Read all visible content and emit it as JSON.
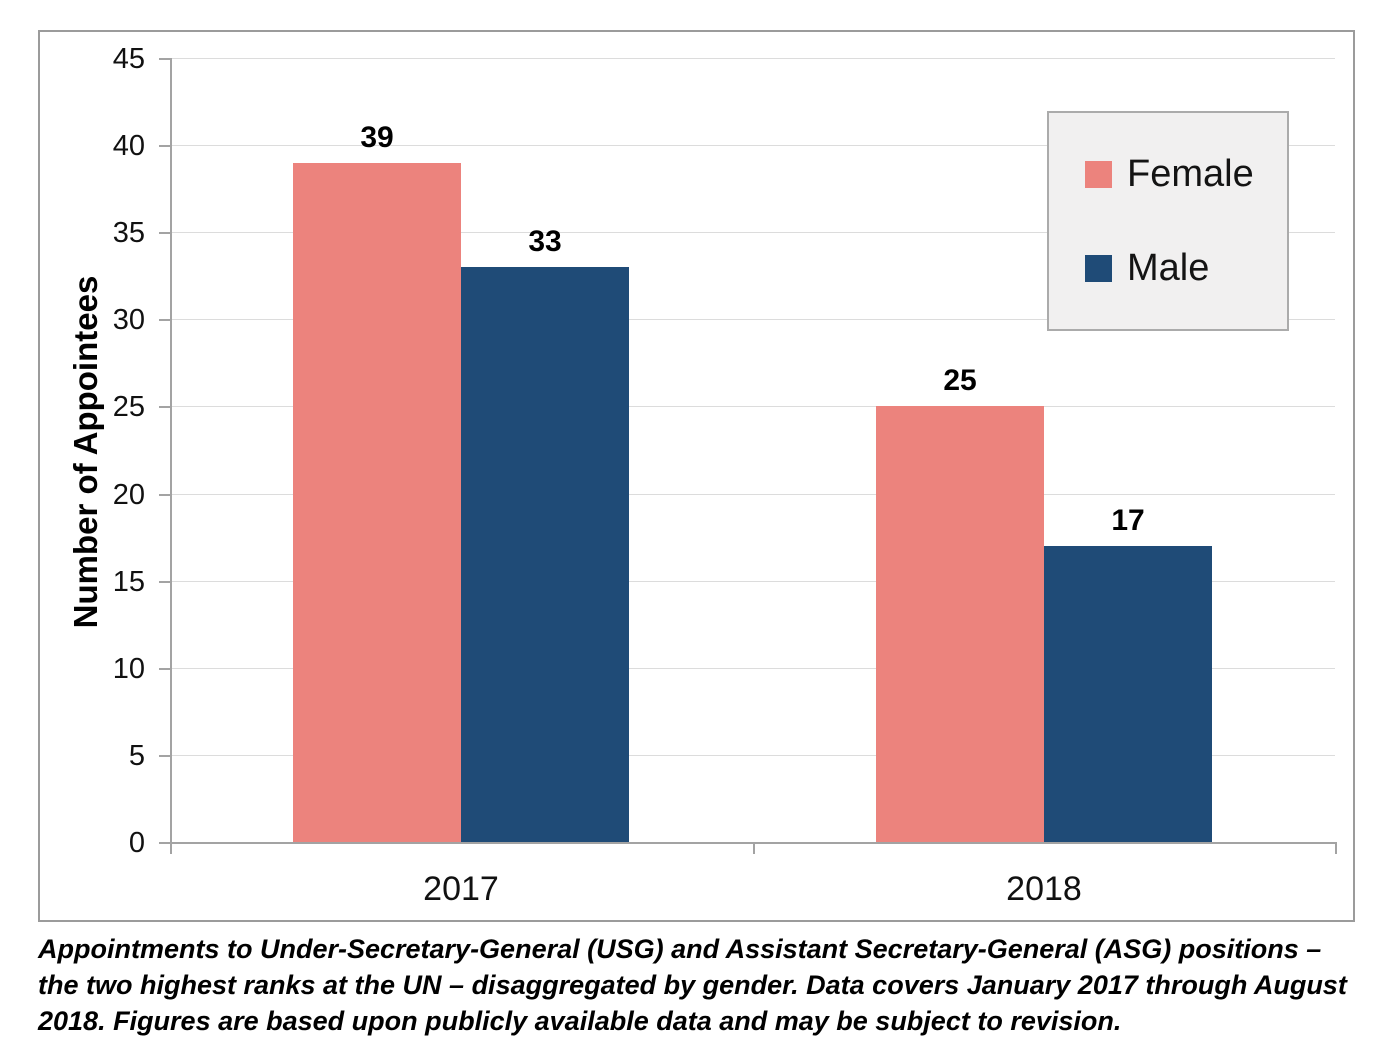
{
  "chart_data": {
    "type": "bar",
    "categories": [
      "2017",
      "2018"
    ],
    "series": [
      {
        "name": "Female",
        "color": "#ec837d",
        "values": [
          39,
          25
        ]
      },
      {
        "name": "Male",
        "color": "#1f4b77",
        "values": [
          33,
          17
        ]
      }
    ],
    "title": "",
    "xlabel": "",
    "ylabel": "Number of Appointees",
    "ylim": [
      0,
      45
    ],
    "ytick_step": 5,
    "yticks": [
      0,
      5,
      10,
      15,
      20,
      25,
      30,
      35,
      40,
      45
    ],
    "grid": true,
    "data_labels_shown": true,
    "legend_position": "top-right"
  },
  "legend": {
    "items": [
      {
        "label": "Female",
        "color": "#ec837d"
      },
      {
        "label": "Male",
        "color": "#1f4b77"
      }
    ]
  },
  "caption": "Appointments to Under-Secretary-General (USG) and Assistant Secretary-General (ASG) positions – the two highest ranks at the UN – disaggregated by gender. Data covers January 2017 through August 2018. Figures are based upon publicly available data and may be subject to revision.",
  "colors": {
    "female_bar": "#ec837d",
    "male_bar": "#1f4b77",
    "axis": "#a3a3a3",
    "gridline": "#dcdcdc",
    "frame_border": "#9b9b9b",
    "legend_background": "#f1f0f0",
    "legend_border": "#ababab",
    "text": "#000000"
  }
}
